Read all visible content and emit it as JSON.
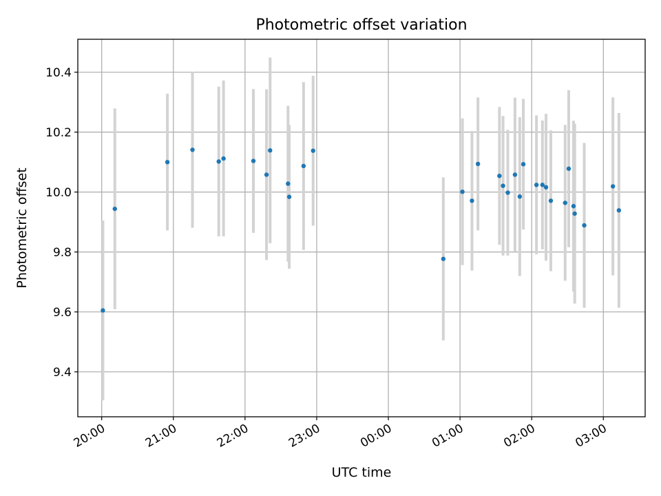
{
  "chart_data": {
    "type": "scatter",
    "title": "Photometric offset variation",
    "xlabel": "UTC time",
    "ylabel": "Photometric offset",
    "x_format": "HH:MM",
    "x_ticks": [
      "20:00",
      "21:00",
      "22:00",
      "23:00",
      "00:00",
      "01:00",
      "02:00",
      "03:00"
    ],
    "xlim": [
      "19:40",
      "03:35"
    ],
    "y_ticks": [
      9.4,
      9.6,
      9.8,
      10.0,
      10.2,
      10.4
    ],
    "ylim": [
      9.25,
      10.51
    ],
    "grid": true,
    "colors": {
      "point": "#1f77b4",
      "errorbar": "#d3d3d3"
    },
    "series": [
      {
        "points": [
          {
            "x": "20:01",
            "y": 9.605,
            "err": 0.3
          },
          {
            "x": "20:11",
            "y": 9.944,
            "err": 0.335
          },
          {
            "x": "20:55",
            "y": 10.1,
            "err": 0.228
          },
          {
            "x": "21:16",
            "y": 10.141,
            "err": 0.26
          },
          {
            "x": "21:38",
            "y": 10.102,
            "err": 0.25
          },
          {
            "x": "21:42",
            "y": 10.112,
            "err": 0.26
          },
          {
            "x": "22:07",
            "y": 10.104,
            "err": 0.24
          },
          {
            "x": "22:18",
            "y": 10.058,
            "err": 0.285
          },
          {
            "x": "22:21",
            "y": 10.139,
            "err": 0.31
          },
          {
            "x": "22:36",
            "y": 10.028,
            "err": 0.26
          },
          {
            "x": "22:37",
            "y": 9.984,
            "err": 0.24
          },
          {
            "x": "22:49",
            "y": 10.087,
            "err": 0.28
          },
          {
            "x": "22:57",
            "y": 10.138,
            "err": 0.25
          },
          {
            "x": "00:46",
            "y": 9.777,
            "err": 0.272
          },
          {
            "x": "01:02",
            "y": 10.001,
            "err": 0.245
          },
          {
            "x": "01:10",
            "y": 9.971,
            "err": 0.233
          },
          {
            "x": "01:15",
            "y": 10.094,
            "err": 0.222
          },
          {
            "x": "01:33",
            "y": 10.054,
            "err": 0.23
          },
          {
            "x": "01:36",
            "y": 10.021,
            "err": 0.233
          },
          {
            "x": "01:40",
            "y": 9.998,
            "err": 0.21
          },
          {
            "x": "01:46",
            "y": 10.058,
            "err": 0.257
          },
          {
            "x": "01:50",
            "y": 9.985,
            "err": 0.265
          },
          {
            "x": "01:53",
            "y": 10.093,
            "err": 0.218
          },
          {
            "x": "02:04",
            "y": 10.024,
            "err": 0.232
          },
          {
            "x": "02:09",
            "y": 10.024,
            "err": 0.215
          },
          {
            "x": "02:12",
            "y": 10.016,
            "err": 0.245
          },
          {
            "x": "02:16",
            "y": 9.971,
            "err": 0.235
          },
          {
            "x": "02:28",
            "y": 9.964,
            "err": 0.26
          },
          {
            "x": "02:31",
            "y": 10.078,
            "err": 0.262
          },
          {
            "x": "02:35",
            "y": 9.953,
            "err": 0.285
          },
          {
            "x": "02:36",
            "y": 9.928,
            "err": 0.3
          },
          {
            "x": "02:44",
            "y": 9.889,
            "err": 0.275
          },
          {
            "x": "03:08",
            "y": 10.019,
            "err": 0.297
          },
          {
            "x": "03:13",
            "y": 9.939,
            "err": 0.325
          }
        ]
      }
    ]
  }
}
